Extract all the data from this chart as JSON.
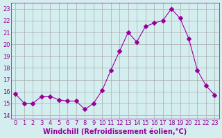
{
  "x": [
    0,
    1,
    2,
    3,
    4,
    5,
    6,
    7,
    8,
    9,
    10,
    11,
    12,
    13,
    14,
    15,
    16,
    17,
    18,
    19,
    20,
    21,
    22,
    23
  ],
  "y": [
    15.8,
    15.0,
    15.0,
    15.6,
    15.6,
    15.3,
    15.2,
    15.2,
    14.5,
    15.0,
    16.1,
    17.8,
    19.4,
    21.0,
    20.2,
    21.5,
    21.8,
    22.0,
    23.0,
    22.2,
    20.5,
    17.8,
    16.5,
    15.7
  ],
  "line_color": "#990099",
  "marker": "D",
  "marker_size": 3,
  "bg_color": "#d4eef0",
  "grid_color": "#aaaaaa",
  "xlabel": "Windchill (Refroidissement éolien,°C)",
  "ylabel_ticks": [
    14,
    15,
    16,
    17,
    18,
    19,
    20,
    21,
    22,
    23
  ],
  "xlabel_ticks": [
    0,
    1,
    2,
    3,
    4,
    5,
    6,
    7,
    8,
    9,
    10,
    11,
    12,
    13,
    14,
    15,
    16,
    17,
    18,
    19,
    20,
    21,
    22,
    23
  ],
  "ylim": [
    13.7,
    23.5
  ],
  "xlim": [
    -0.5,
    23.5
  ],
  "tick_fontsize": 6,
  "xlabel_fontsize": 7
}
